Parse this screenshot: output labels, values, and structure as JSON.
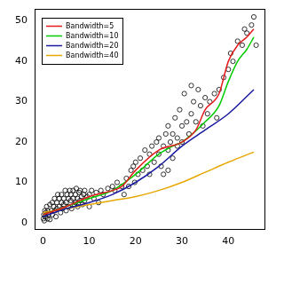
{
  "chart_data": {
    "type": "scatter",
    "marker": "open circle",
    "color": "#000000",
    "x": [
      0.1,
      0.2,
      0.3,
      0.4,
      0.5,
      0.6,
      0.8,
      1,
      1,
      1.2,
      1.5,
      1.5,
      1.8,
      2,
      2,
      2.3,
      2.5,
      2.6,
      2.8,
      3,
      3,
      3.2,
      3.5,
      3.5,
      3.8,
      4,
      4,
      4.2,
      4.5,
      4.5,
      4.8,
      5,
      5,
      5.2,
      5.5,
      5.5,
      5.8,
      6,
      6,
      6.2,
      6.5,
      6.5,
      6.8,
      7,
      7,
      7.2,
      7.5,
      7.5,
      7.8,
      8,
      8,
      8.3,
      8.5,
      8.8,
      9,
      9,
      9.5,
      10,
      10,
      10.5,
      11,
      11.5,
      12,
      12.5,
      13,
      14,
      15,
      15.5,
      16,
      17,
      17.5,
      18,
      18.5,
      19,
      19.5,
      19.8,
      20,
      20.5,
      21,
      21.5,
      22,
      22.5,
      23,
      23,
      23.5,
      24,
      24.5,
      25,
      25,
      25.5,
      26,
      26,
      26.5,
      27,
      27,
      27,
      27.5,
      28,
      28,
      28.5,
      29,
      29,
      29.5,
      30,
      30,
      30.5,
      31,
      31.5,
      32,
      32,
      32.5,
      33,
      33.5,
      34,
      34.5,
      35,
      35.5,
      36,
      37,
      37.5,
      38,
      39,
      40,
      40.5,
      41,
      42,
      43,
      43.5,
      44,
      45,
      45.5,
      46
    ],
    "values": [
      1,
      2,
      0.5,
      3,
      1.5,
      2.5,
      4,
      1,
      3,
      2,
      4.5,
      0.8,
      3,
      5,
      2,
      4,
      6,
      3,
      1.5,
      5,
      3.5,
      7,
      4,
      6,
      2.5,
      5,
      7,
      3.5,
      6,
      4.5,
      8,
      5,
      3,
      7,
      6,
      4,
      8,
      5.5,
      7,
      3.5,
      6,
      8,
      4.5,
      7,
      5,
      8.5,
      6,
      4,
      7.5,
      5.5,
      8,
      6.5,
      4.5,
      7,
      8,
      5.5,
      6.5,
      7,
      4,
      8,
      6,
      7.5,
      5,
      8,
      7,
      8.5,
      9,
      8,
      10,
      9,
      7,
      11,
      9,
      13,
      14,
      10,
      15,
      12,
      16,
      13,
      18,
      14,
      17,
      12,
      19,
      15,
      20,
      17,
      21,
      14,
      19,
      12,
      22,
      18,
      24,
      13,
      20,
      16,
      22,
      26,
      21,
      19,
      28,
      24,
      20,
      32,
      25,
      22,
      27,
      34,
      30,
      25,
      33,
      29,
      24,
      31,
      27,
      30,
      32,
      26,
      33,
      36,
      38,
      42,
      40,
      45,
      44,
      48,
      47,
      49,
      51,
      44
    ],
    "series": [
      {
        "name": "Bandwidth=5",
        "color": "#e41a1c",
        "type": "line",
        "x": [
          0,
          5,
          10,
          15,
          17,
          20,
          25,
          30,
          33,
          35,
          38,
          40,
          42,
          44,
          45.5
        ],
        "values": [
          2,
          4,
          6.5,
          8,
          9,
          13,
          18,
          20,
          23,
          28,
          32,
          40,
          44,
          46,
          48
        ]
      },
      {
        "name": "Bandwidth=10",
        "color": "#00cc00",
        "type": "line",
        "x": [
          0,
          5,
          10,
          15,
          20,
          25,
          28,
          30,
          35,
          38,
          40,
          42,
          44,
          45.5
        ],
        "values": [
          2,
          4,
          6,
          8,
          12,
          17,
          19,
          20,
          25,
          29,
          35,
          40,
          43,
          46
        ]
      },
      {
        "name": "Bandwidth=20",
        "color": "#1a1aa0",
        "type": "line",
        "x": [
          0,
          5,
          10,
          15,
          20,
          25,
          30,
          35,
          40,
          45.5
        ],
        "values": [
          1.5,
          3.5,
          5,
          7,
          10,
          14,
          19,
          23,
          27,
          33
        ]
      },
      {
        "name": "Bandwidth=40",
        "color": "#e6a800",
        "type": "line",
        "x": [
          0,
          5,
          10,
          15,
          20,
          25,
          30,
          35,
          40,
          45.5
        ],
        "values": [
          2.5,
          3.5,
          4.5,
          5.5,
          6.5,
          8,
          10,
          12.5,
          15,
          17.5
        ]
      }
    ],
    "xlim": [
      -1.8,
      47.8
    ],
    "ylim": [
      -1.5,
      53
    ],
    "xticks": [
      0,
      10,
      20,
      30,
      40
    ],
    "yticks": [
      0,
      10,
      20,
      30,
      40,
      50
    ],
    "grid": false,
    "legend": "top-left"
  }
}
